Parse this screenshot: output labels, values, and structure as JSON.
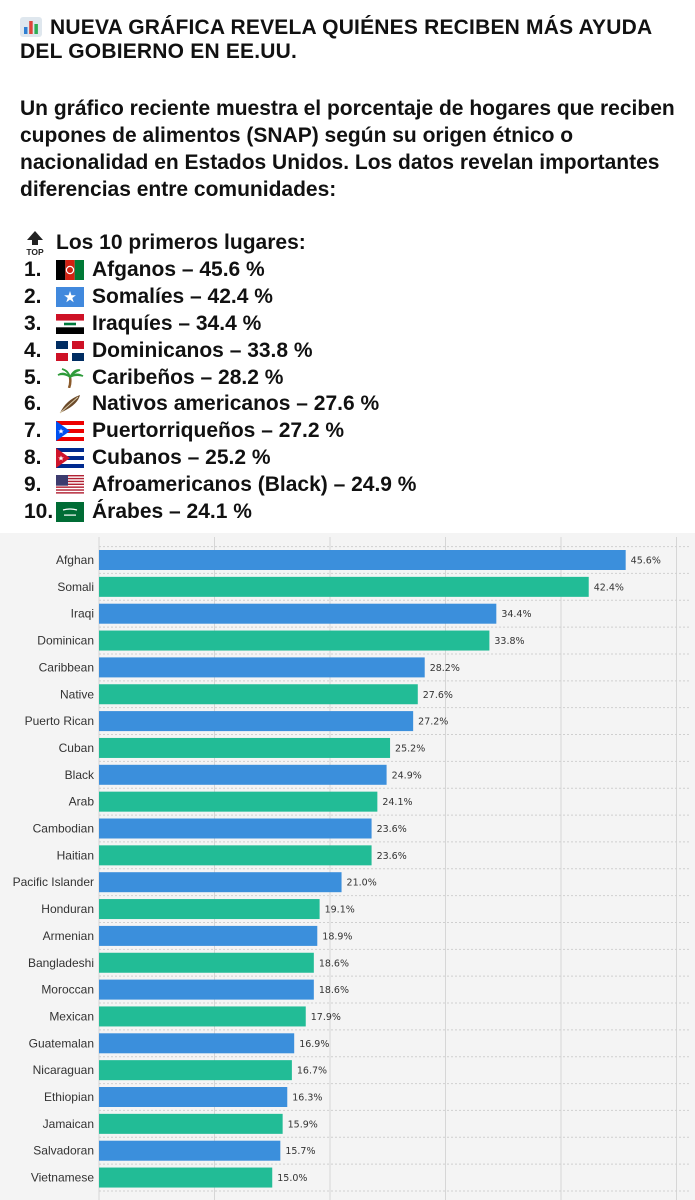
{
  "post": {
    "headline_icon": "bar-chart-emoji",
    "headline": "NUEVA GRÁFICA REVELA QUIÉNES RECIBEN MÁS AYUDA DEL GOBIERNO EN EE.UU.",
    "body": "Un gráfico reciente muestra el porcentaje de hogares que reciben cupones de alimentos (SNAP) según su origen étnico o nacionalidad en Estados Unidos. Los datos revelan importantes diferencias entre comunidades:",
    "top_icon_text": "TOP",
    "top_heading": "Los 10 primeros lugares:",
    "ranking": [
      {
        "num": "1.",
        "icon": "afghanistan-flag",
        "text": "Afganos – 45.6 %"
      },
      {
        "num": "2.",
        "icon": "somalia-flag",
        "text": "Somalíes – 42.4 %"
      },
      {
        "num": "3.",
        "icon": "iraq-flag",
        "text": "Iraquíes – 34.4 %"
      },
      {
        "num": "4.",
        "icon": "dominican-republic-flag",
        "text": "Dominicanos – 33.8 %"
      },
      {
        "num": "5.",
        "icon": "palm-tree",
        "text": "Caribeños – 28.2 %"
      },
      {
        "num": "6.",
        "icon": "feather",
        "text": "Nativos americanos – 27.6 %"
      },
      {
        "num": "7.",
        "icon": "puerto-rico-flag",
        "text": "Puertorriqueños – 27.2 %"
      },
      {
        "num": "8.",
        "icon": "cuba-flag",
        "text": "Cubanos – 25.2 %"
      },
      {
        "num": "9.",
        "icon": "usa-flag",
        "text": "Afroamericanos (Black) – 24.9 %"
      },
      {
        "num": "10.",
        "icon": "saudi-arabia-flag",
        "text": "Árabes – 24.1 %"
      }
    ]
  },
  "chart_data": {
    "type": "bar",
    "orientation": "horizontal",
    "categories": [
      "Afghan",
      "Somali",
      "Iraqi",
      "Dominican",
      "Caribbean",
      "Native",
      "Puerto Rican",
      "Cuban",
      "Black",
      "Arab",
      "Cambodian",
      "Haitian",
      "Pacific Islander",
      "Honduran",
      "Armenian",
      "Bangladeshi",
      "Moroccan",
      "Mexican",
      "Guatemalan",
      "Nicaraguan",
      "Ethiopian",
      "Jamaican",
      "Salvadoran",
      "Vietnamese"
    ],
    "values": [
      45.6,
      42.4,
      34.4,
      33.8,
      28.2,
      27.6,
      27.2,
      25.2,
      24.9,
      24.1,
      23.6,
      23.6,
      21.0,
      19.1,
      18.9,
      18.6,
      18.6,
      17.9,
      16.9,
      16.7,
      16.3,
      15.9,
      15.7,
      15.0
    ],
    "value_labels": [
      "45.6%",
      "42.4%",
      "34.4%",
      "33.8%",
      "28.2%",
      "27.6%",
      "27.2%",
      "25.2%",
      "24.9%",
      "24.1%",
      "23.6%",
      "23.6%",
      "21.0%",
      "19.1%",
      "18.9%",
      "18.6%",
      "18.6%",
      "17.9%",
      "16.9%",
      "16.7%",
      "16.3%",
      "15.9%",
      "15.7%",
      "15.0%"
    ],
    "colors": [
      "#3b8fdc",
      "#22bc96"
    ],
    "xlim": [
      0,
      50
    ],
    "grid": true,
    "background": "#f4f4f4"
  }
}
